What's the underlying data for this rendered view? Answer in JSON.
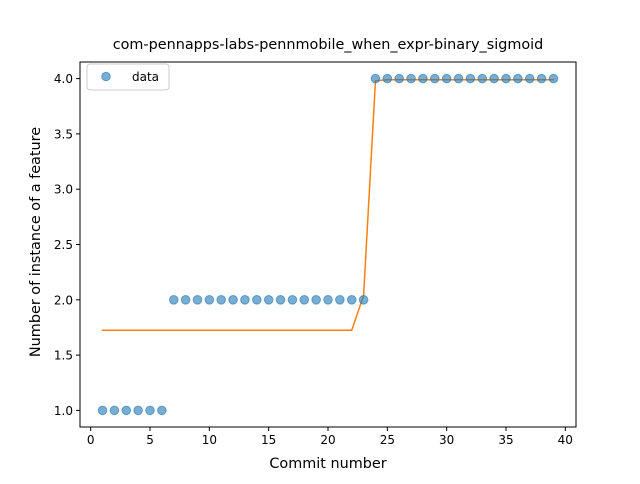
{
  "chart_data": {
    "type": "scatter",
    "title": "com-pennapps-labs-pennmobile_when_expr-binary_sigmoid",
    "xlabel": "Commit number",
    "ylabel": "Number of instance of a feature",
    "xlim": [
      -0.9,
      40.9
    ],
    "ylim": [
      0.85,
      4.15
    ],
    "x_ticks": [
      0,
      5,
      10,
      15,
      20,
      25,
      30,
      35,
      40
    ],
    "y_ticks": [
      1.0,
      1.5,
      2.0,
      2.5,
      3.0,
      3.5,
      4.0
    ],
    "x_tick_labels": [
      "0",
      "5",
      "10",
      "15",
      "20",
      "25",
      "30",
      "35",
      "40"
    ],
    "y_tick_labels": [
      "1.0",
      "1.5",
      "2.0",
      "2.5",
      "3.0",
      "3.5",
      "4.0"
    ],
    "grid": false,
    "legend": {
      "position": "top-left",
      "entries": [
        "data"
      ]
    },
    "series": [
      {
        "name": "data",
        "kind": "scatter",
        "color": "#1f77b4",
        "x": [
          1,
          2,
          3,
          4,
          5,
          6,
          7,
          8,
          9,
          10,
          11,
          12,
          13,
          14,
          15,
          16,
          17,
          18,
          19,
          20,
          21,
          22,
          23,
          24,
          25,
          26,
          27,
          28,
          29,
          30,
          31,
          32,
          33,
          34,
          35,
          36,
          37,
          38,
          39
        ],
        "y": [
          1,
          1,
          1,
          1,
          1,
          1,
          2,
          2,
          2,
          2,
          2,
          2,
          2,
          2,
          2,
          2,
          2,
          2,
          2,
          2,
          2,
          2,
          2,
          4,
          4,
          4,
          4,
          4,
          4,
          4,
          4,
          4,
          4,
          4,
          4,
          4,
          4,
          4,
          4
        ]
      },
      {
        "kind": "line",
        "color": "#ff7f0e",
        "x": [
          1,
          2,
          3,
          4,
          5,
          6,
          7,
          8,
          9,
          10,
          11,
          12,
          13,
          14,
          15,
          16,
          17,
          18,
          19,
          20,
          21,
          22,
          23,
          24,
          25,
          26,
          27,
          28,
          29,
          30,
          31,
          32,
          33,
          34,
          35,
          36,
          37,
          38,
          39
        ],
        "y": [
          1.725,
          1.725,
          1.725,
          1.725,
          1.725,
          1.725,
          1.725,
          1.725,
          1.725,
          1.725,
          1.725,
          1.725,
          1.725,
          1.725,
          1.725,
          1.725,
          1.725,
          1.725,
          1.725,
          1.725,
          1.725,
          1.725,
          2.04,
          3.98,
          3.99,
          3.99,
          3.99,
          3.99,
          3.99,
          3.99,
          3.99,
          3.99,
          3.99,
          3.99,
          3.99,
          3.99,
          3.99,
          3.99,
          3.99
        ]
      }
    ]
  }
}
